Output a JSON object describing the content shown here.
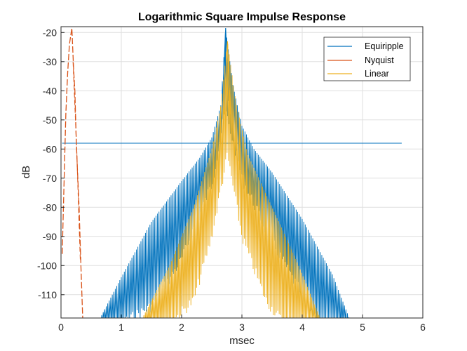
{
  "chart_data": {
    "type": "line",
    "title": "Logarithmic Square Impulse Response",
    "xlabel": "msec",
    "ylabel": "dB",
    "xlim": [
      0,
      6
    ],
    "ylim": [
      -118,
      -18
    ],
    "xticks": [
      0,
      1,
      2,
      3,
      4,
      5,
      6
    ],
    "yticks": [
      -20,
      -30,
      -40,
      -50,
      -60,
      -70,
      -80,
      -90,
      -100,
      -110
    ],
    "grid": true,
    "legend_position": "top-right",
    "series": [
      {
        "name": "Equiripple",
        "color": "#0072BD",
        "peak": {
          "x": 2.73,
          "y": -18.5
        },
        "envelope_upper": [
          [
            0.65,
            -118
          ],
          [
            1.0,
            -104
          ],
          [
            1.5,
            -85
          ],
          [
            2.0,
            -71
          ],
          [
            2.3,
            -63
          ],
          [
            2.5,
            -56
          ],
          [
            2.65,
            -45
          ],
          [
            2.73,
            -18.5
          ],
          [
            2.85,
            -38
          ],
          [
            3.0,
            -52
          ],
          [
            3.2,
            -60
          ],
          [
            3.5,
            -68
          ],
          [
            4.0,
            -84
          ],
          [
            4.5,
            -103
          ],
          [
            4.78,
            -118
          ]
        ],
        "envelope_lower": [
          [
            0.65,
            -118
          ],
          [
            1.0,
            -118
          ],
          [
            1.5,
            -112
          ],
          [
            2.0,
            -96
          ],
          [
            2.5,
            -70
          ],
          [
            2.73,
            -45
          ],
          [
            3.0,
            -68
          ],
          [
            3.5,
            -90
          ],
          [
            4.0,
            -108
          ],
          [
            4.3,
            -118
          ],
          [
            4.78,
            -118
          ]
        ],
        "flat_segment": {
          "x_start": 0.02,
          "x_end": 5.65,
          "y": -58
        }
      },
      {
        "name": "Nyquist",
        "color": "#D95319",
        "peak": {
          "x": 0.18,
          "y": -18.5
        },
        "points": [
          [
            0.02,
            -96
          ],
          [
            0.05,
            -72
          ],
          [
            0.08,
            -48
          ],
          [
            0.11,
            -34
          ],
          [
            0.14,
            -24
          ],
          [
            0.18,
            -18.5
          ],
          [
            0.21,
            -33
          ],
          [
            0.23,
            -40
          ],
          [
            0.25,
            -55
          ],
          [
            0.27,
            -66
          ],
          [
            0.3,
            -80
          ],
          [
            0.33,
            -100
          ],
          [
            0.36,
            -118
          ]
        ]
      },
      {
        "name": "Linear",
        "color": "#EDB120",
        "peak": {
          "x": 2.76,
          "y": -23
        },
        "envelope_upper": [
          [
            1.35,
            -118
          ],
          [
            1.8,
            -100
          ],
          [
            2.2,
            -80
          ],
          [
            2.5,
            -60
          ],
          [
            2.65,
            -45
          ],
          [
            2.76,
            -23
          ],
          [
            2.9,
            -44
          ],
          [
            3.1,
            -62
          ],
          [
            3.5,
            -80
          ],
          [
            3.9,
            -98
          ],
          [
            4.3,
            -118
          ]
        ],
        "envelope_lower": [
          [
            1.35,
            -118
          ],
          [
            1.8,
            -118
          ],
          [
            2.2,
            -110
          ],
          [
            2.5,
            -88
          ],
          [
            2.76,
            -60
          ],
          [
            3.0,
            -88
          ],
          [
            3.4,
            -110
          ],
          [
            3.7,
            -118
          ],
          [
            4.3,
            -118
          ]
        ]
      }
    ]
  }
}
